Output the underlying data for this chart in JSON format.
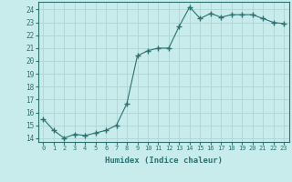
{
  "x": [
    0,
    1,
    2,
    3,
    4,
    5,
    6,
    7,
    8,
    9,
    10,
    11,
    12,
    13,
    14,
    15,
    16,
    17,
    18,
    19,
    20,
    21,
    22,
    23
  ],
  "y": [
    15.5,
    14.6,
    14.0,
    14.3,
    14.2,
    14.4,
    14.6,
    15.0,
    16.7,
    20.4,
    20.8,
    21.0,
    21.0,
    22.7,
    24.2,
    23.3,
    23.7,
    23.4,
    23.6,
    23.6,
    23.6,
    23.3,
    23.0,
    22.9
  ],
  "line_color": "#2d7070",
  "marker": "+",
  "marker_size": 4,
  "bg_color": "#c8ecec",
  "grid_color": "#b0d4d4",
  "xlabel": "Humidex (Indice chaleur)",
  "ylabel_ticks": [
    14,
    15,
    16,
    17,
    18,
    19,
    20,
    21,
    22,
    23,
    24
  ],
  "xlim": [
    -0.5,
    23.5
  ],
  "ylim": [
    13.7,
    24.6
  ]
}
